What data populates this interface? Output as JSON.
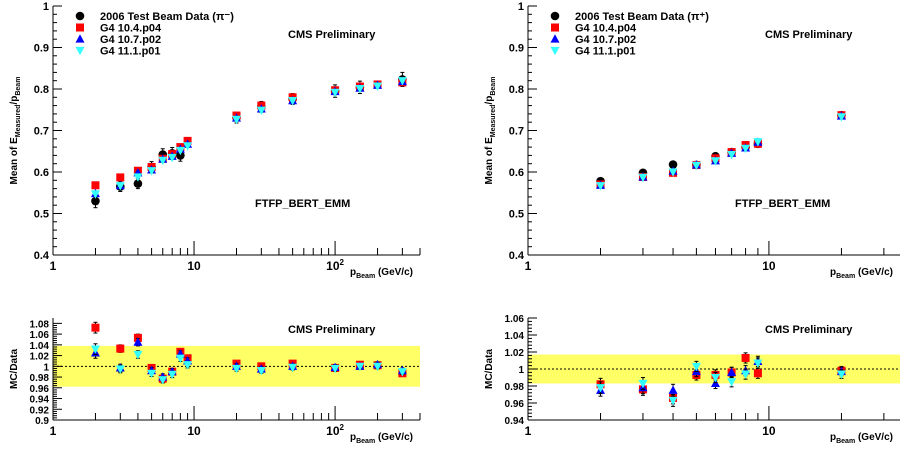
{
  "chart_data": [
    {
      "type": "scatter",
      "panel": "top-left",
      "xscale": "log",
      "xlim": [
        1,
        400
      ],
      "ylim": [
        0.4,
        1.0
      ],
      "xlabel_main": "p",
      "xlabel_sub": "Beam",
      "xlabel_unit": " (GeV/c)",
      "ylabel_main": "Mean of E",
      "ylabel_sub1": "Measured",
      "ylabel_mid": "/p",
      "ylabel_sub2": "Beam",
      "yticks": [
        "0.4",
        "0.5",
        "0.6",
        "0.7",
        "0.8",
        "0.9",
        "1"
      ],
      "xticks": [
        {
          "value": 1,
          "label": "1"
        },
        {
          "value": 10,
          "label": "10"
        },
        {
          "value": 100,
          "label": "10",
          "sup": "2"
        }
      ],
      "annotations": [
        "CMS Preliminary",
        "FTFP_BERT_EMM"
      ],
      "legend": [
        "2006 Test Beam Data (π⁻)",
        "G4 10.4.p04",
        "G4 10.7.p02",
        "G4 11.1.p01"
      ],
      "series": [
        {
          "name": "2006 Test Beam Data (π⁻)",
          "marker": "circle",
          "color": "#000000",
          "x": [
            2,
            3,
            4,
            5,
            6,
            7,
            8,
            20,
            30,
            50,
            100,
            150,
            300
          ],
          "y": [
            0.53,
            0.565,
            0.572,
            0.612,
            0.642,
            0.645,
            0.64,
            0.731,
            0.757,
            0.776,
            0.795,
            0.804,
            0.823
          ],
          "err": [
            0.016,
            0.012,
            0.012,
            0.013,
            0.014,
            0.014,
            0.014,
            0.013,
            0.013,
            0.013,
            0.015,
            0.015,
            0.017
          ]
        },
        {
          "name": "G4 10.4.p04",
          "marker": "square",
          "color": "#ff0000",
          "x": [
            2,
            3,
            4,
            5,
            6,
            7,
            8,
            9,
            20,
            30,
            50,
            100,
            150,
            200,
            300
          ],
          "y": [
            0.568,
            0.587,
            0.603,
            0.612,
            0.632,
            0.643,
            0.66,
            0.675,
            0.736,
            0.76,
            0.78,
            0.797,
            0.806,
            0.811,
            0.816
          ],
          "err": [
            0.004,
            0.004,
            0.004,
            0.004,
            0.004,
            0.004,
            0.004,
            0.004,
            0.004,
            0.004,
            0.004,
            0.004,
            0.004,
            0.004,
            0.004
          ]
        },
        {
          "name": "G4 10.7.p02",
          "marker": "triangle",
          "color": "#0000ff",
          "x": [
            2,
            3,
            4,
            5,
            6,
            7,
            8,
            9,
            20,
            30,
            50,
            100,
            150,
            200,
            300
          ],
          "y": [
            0.548,
            0.567,
            0.598,
            0.605,
            0.631,
            0.638,
            0.655,
            0.667,
            0.73,
            0.752,
            0.772,
            0.794,
            0.802,
            0.809,
            0.818
          ],
          "err": [
            0.004,
            0.004,
            0.004,
            0.004,
            0.004,
            0.004,
            0.004,
            0.004,
            0.004,
            0.004,
            0.004,
            0.004,
            0.004,
            0.004,
            0.004
          ]
        },
        {
          "name": "G4 11.1.p01",
          "marker": "triangle-down",
          "color": "#33ffff",
          "x": [
            2,
            3,
            4,
            5,
            6,
            7,
            8,
            9,
            20,
            30,
            50,
            100,
            150,
            200,
            300
          ],
          "y": [
            0.547,
            0.567,
            0.588,
            0.603,
            0.628,
            0.635,
            0.652,
            0.663,
            0.727,
            0.749,
            0.772,
            0.792,
            0.801,
            0.807,
            0.82
          ],
          "err": [
            0.004,
            0.004,
            0.004,
            0.004,
            0.004,
            0.004,
            0.004,
            0.004,
            0.004,
            0.004,
            0.004,
            0.004,
            0.004,
            0.004,
            0.004
          ]
        }
      ]
    },
    {
      "type": "scatter",
      "panel": "top-right",
      "xscale": "log",
      "xlim": [
        1,
        35
      ],
      "ylim": [
        0.4,
        1.0
      ],
      "xlabel_main": "p",
      "xlabel_sub": "Beam",
      "xlabel_unit": " (GeV/c)",
      "ylabel_main": "Mean of E",
      "ylabel_sub1": "Measured",
      "ylabel_mid": "/p",
      "ylabel_sub2": "Beam",
      "yticks": [
        "0.4",
        "0.5",
        "0.6",
        "0.7",
        "0.8",
        "0.9",
        "1"
      ],
      "xticks": [
        {
          "value": 1,
          "label": "1"
        },
        {
          "value": 10,
          "label": "10"
        }
      ],
      "annotations": [
        "CMS Preliminary",
        "FTFP_BERT_EMM"
      ],
      "legend": [
        "2006 Test Beam Data (π⁺)",
        "G4 10.4.p04",
        "G4 10.7.p02",
        "G4 11.1.p01"
      ],
      "series": [
        {
          "name": "2006 Test Beam Data (π⁺)",
          "marker": "circle",
          "color": "#000000",
          "x": [
            2,
            3,
            4,
            5,
            6,
            7,
            8,
            9,
            20
          ],
          "y": [
            0.578,
            0.598,
            0.618,
            0.617,
            0.638,
            0.648,
            0.66,
            0.668,
            0.737
          ],
          "err": [
            0.006,
            0.006,
            0.006,
            0.006,
            0.006,
            0.006,
            0.006,
            0.006,
            0.006
          ]
        },
        {
          "name": "G4 10.4.p04",
          "marker": "square",
          "color": "#ff0000",
          "x": [
            2,
            3,
            4,
            5,
            6,
            7,
            8,
            9,
            20
          ],
          "y": [
            0.57,
            0.588,
            0.598,
            0.617,
            0.633,
            0.648,
            0.665,
            0.668,
            0.737
          ],
          "err": [
            0.004,
            0.004,
            0.004,
            0.004,
            0.004,
            0.004,
            0.004,
            0.004,
            0.004
          ]
        },
        {
          "name": "G4 10.7.p02",
          "marker": "triangle",
          "color": "#0000ff",
          "x": [
            2,
            3,
            4,
            5,
            6,
            7,
            8,
            9,
            20
          ],
          "y": [
            0.568,
            0.588,
            0.602,
            0.617,
            0.627,
            0.645,
            0.658,
            0.672,
            0.735
          ],
          "err": [
            0.004,
            0.004,
            0.004,
            0.004,
            0.004,
            0.004,
            0.004,
            0.004,
            0.004
          ]
        },
        {
          "name": "G4 11.1.p01",
          "marker": "triangle-down",
          "color": "#33ffff",
          "x": [
            2,
            3,
            4,
            5,
            6,
            7,
            8,
            9,
            20
          ],
          "y": [
            0.567,
            0.587,
            0.6,
            0.616,
            0.627,
            0.642,
            0.657,
            0.673,
            0.733
          ],
          "err": [
            0.004,
            0.004,
            0.004,
            0.004,
            0.004,
            0.004,
            0.004,
            0.004,
            0.004
          ]
        }
      ]
    },
    {
      "type": "scatter",
      "panel": "bottom-left",
      "xscale": "log",
      "xlim": [
        1,
        400
      ],
      "ylim": [
        0.9,
        1.09
      ],
      "band": [
        0.962,
        1.038
      ],
      "band_color": "#ffff66",
      "reference_line": 1.0,
      "xlabel_main": "p",
      "xlabel_sub": "Beam",
      "xlabel_unit": " (GeV/c)",
      "ylabel": "MC/Data",
      "ytick_values": [
        0.9,
        0.92,
        0.94,
        0.96,
        0.98,
        1.0,
        1.02,
        1.04,
        1.06,
        1.08
      ],
      "yticks": [
        "0.9",
        "0.92",
        "0.94",
        "0.96",
        "0.98",
        "1",
        "1.02",
        "1.04",
        "1.06",
        "1.08"
      ],
      "xticks": [
        {
          "value": 1,
          "label": "1"
        },
        {
          "value": 10,
          "label": "10"
        },
        {
          "value": 100,
          "label": "10",
          "sup": "2"
        }
      ],
      "annotations": [
        "CMS Preliminary"
      ],
      "series": [
        {
          "name": "G4 10.4.p04",
          "marker": "square",
          "color": "#ff0000",
          "x": [
            2,
            3,
            4,
            5,
            6,
            7,
            8,
            9,
            20,
            30,
            50,
            100,
            150,
            200,
            300
          ],
          "y": [
            1.072,
            1.033,
            1.053,
            0.997,
            0.977,
            0.99,
            1.027,
            1.015,
            1.005,
            1.0,
            1.005,
            0.997,
            1.003,
            1.002,
            0.987
          ],
          "err": [
            0.01,
            0.007,
            0.007,
            0.006,
            0.006,
            0.006,
            0.006,
            0.006,
            0.005,
            0.005,
            0.005,
            0.005,
            0.005,
            0.005,
            0.005
          ]
        },
        {
          "name": "G4 10.7.p02",
          "marker": "triangle",
          "color": "#0000ff",
          "x": [
            2,
            3,
            4,
            5,
            6,
            7,
            8,
            9,
            20,
            30,
            50,
            100,
            150,
            200,
            300
          ],
          "y": [
            1.025,
            0.997,
            1.045,
            0.992,
            0.98,
            0.99,
            1.023,
            1.01,
            1.0,
            0.995,
            1.0,
            0.998,
            1.0,
            1.003,
            0.992
          ],
          "err": [
            0.01,
            0.007,
            0.007,
            0.006,
            0.006,
            0.006,
            0.006,
            0.006,
            0.005,
            0.005,
            0.005,
            0.005,
            0.005,
            0.005,
            0.005
          ]
        },
        {
          "name": "G4 11.1.p01",
          "marker": "triangle-down",
          "color": "#33ffff",
          "x": [
            2,
            3,
            4,
            5,
            6,
            7,
            8,
            9,
            20,
            30,
            50,
            100,
            150,
            200,
            300
          ],
          "y": [
            1.032,
            0.995,
            1.022,
            0.987,
            0.975,
            0.985,
            1.015,
            1.003,
            0.996,
            0.992,
            0.998,
            0.996,
            1.0,
            1.0,
            0.99
          ],
          "err": [
            0.01,
            0.007,
            0.007,
            0.006,
            0.006,
            0.006,
            0.006,
            0.006,
            0.005,
            0.005,
            0.005,
            0.005,
            0.005,
            0.005,
            0.005
          ]
        }
      ]
    },
    {
      "type": "scatter",
      "panel": "bottom-right",
      "xscale": "log",
      "xlim": [
        1,
        35
      ],
      "ylim": [
        0.94,
        1.06
      ],
      "band": [
        0.983,
        1.017
      ],
      "band_color": "#ffff66",
      "reference_line": 1.0,
      "xlabel_main": "p",
      "xlabel_sub": "Beam",
      "xlabel_unit": " (GeV/c)",
      "ylabel": "MC/Data",
      "ytick_values": [
        0.94,
        0.96,
        0.98,
        1.0,
        1.02,
        1.04,
        1.06
      ],
      "yticks": [
        "0.94",
        "0.96",
        "0.98",
        "1",
        "1.02",
        "1.04",
        "1.06"
      ],
      "xticks": [
        {
          "value": 1,
          "label": "1"
        },
        {
          "value": 10,
          "label": "10"
        }
      ],
      "annotations": [
        "CMS Preliminary"
      ],
      "series": [
        {
          "name": "G4 10.4.p04",
          "marker": "square",
          "color": "#ff0000",
          "x": [
            2,
            3,
            4,
            5,
            6,
            7,
            8,
            9,
            20
          ],
          "y": [
            0.982,
            0.976,
            0.966,
            0.993,
            0.993,
            0.996,
            1.013,
            0.995,
            0.998
          ],
          "err": [
            0.007,
            0.007,
            0.007,
            0.006,
            0.006,
            0.006,
            0.006,
            0.006,
            0.005
          ]
        },
        {
          "name": "G4 10.7.p02",
          "marker": "triangle",
          "color": "#0000ff",
          "x": [
            2,
            3,
            4,
            5,
            6,
            7,
            8,
            9,
            20
          ],
          "y": [
            0.975,
            0.978,
            0.975,
            0.997,
            0.983,
            0.996,
            0.998,
            1.009,
            0.997
          ],
          "err": [
            0.007,
            0.007,
            0.007,
            0.006,
            0.006,
            0.006,
            0.006,
            0.006,
            0.005
          ]
        },
        {
          "name": "G4 11.1.p01",
          "marker": "triangle-down",
          "color": "#33ffff",
          "x": [
            2,
            3,
            4,
            5,
            6,
            7,
            8,
            9,
            20
          ],
          "y": [
            0.978,
            0.983,
            0.963,
            1.003,
            0.99,
            0.985,
            0.994,
            1.007,
            0.994
          ],
          "err": [
            0.007,
            0.007,
            0.007,
            0.006,
            0.006,
            0.006,
            0.006,
            0.006,
            0.005
          ]
        }
      ]
    }
  ]
}
